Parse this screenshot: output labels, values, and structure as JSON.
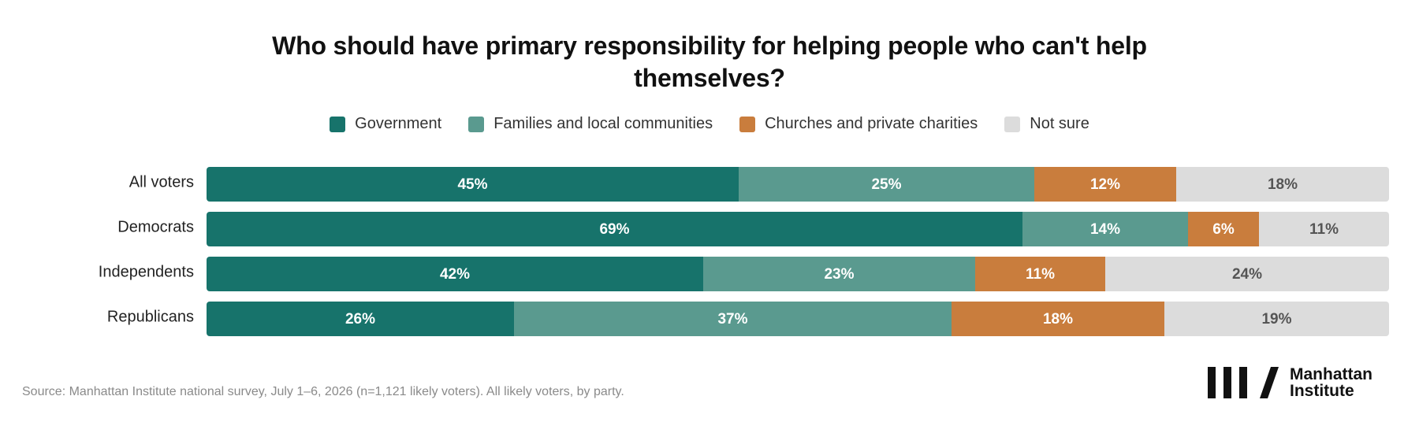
{
  "chart_data": {
    "type": "bar",
    "orientation": "horizontal",
    "stacked": true,
    "title": "Who should have primary responsibility for helping people who can't help themselves?",
    "title_lines": [
      "Who should have primary responsibility for helping people who can't help",
      "themselves?"
    ],
    "categories": [
      "All voters",
      "Democrats",
      "Independents",
      "Republicans"
    ],
    "series": [
      {
        "name": "Government",
        "color": "#17736b",
        "label_color": "#ffffff",
        "values": [
          45,
          69,
          42,
          26
        ]
      },
      {
        "name": "Families and local communities",
        "color": "#5a9a8f",
        "label_color": "#ffffff",
        "values": [
          25,
          14,
          23,
          37
        ]
      },
      {
        "name": "Churches and private charities",
        "color": "#c97d3d",
        "label_color": "#ffffff",
        "values": [
          12,
          6,
          11,
          18
        ]
      },
      {
        "name": "Not sure",
        "color": "#dcdcdc",
        "label_color": "#555555",
        "values": [
          18,
          11,
          24,
          19
        ]
      }
    ],
    "value_suffix": "%",
    "xlim": [
      0,
      100
    ],
    "legend_position": "top",
    "grid": false
  },
  "source": "Source: Manhattan Institute national survey, July 1–6, 2026 (n=1,121 likely voters). All likely voters, by party.",
  "logo": {
    "line1": "Manhattan",
    "line2": "Institute"
  }
}
